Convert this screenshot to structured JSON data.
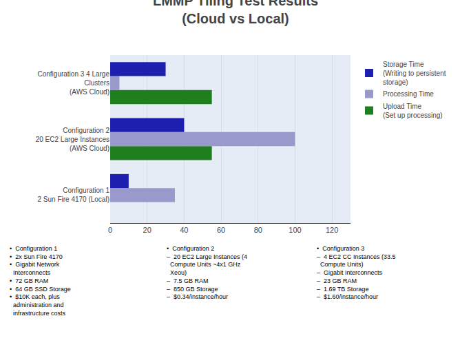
{
  "chart_data": {
    "type": "bar",
    "orientation": "horizontal",
    "title": "LMMP Tiling Test Results",
    "subtitle": "(Cloud vs Local)",
    "categories": [
      "Configuration 1\n2 Sun Fire 4170 (Local)",
      "Configuration 2\n20 EC2 Large Instances\n(AWS Cloud)",
      "Configuration 3 4 Large\nClusters\n(AWS Cloud)"
    ],
    "series": [
      {
        "name": "Storage Time\n(Writing to persistent\nstorage)",
        "color": "#1F1FAF",
        "values": [
          10,
          40,
          30
        ]
      },
      {
        "name": "Processing Time",
        "color": "#9999CC",
        "values": [
          35,
          100,
          5
        ]
      },
      {
        "name": "Upload Time\n(Set up processing)",
        "color": "#1F7F1F",
        "values": [
          0,
          55,
          55
        ]
      }
    ],
    "xlim": [
      0,
      130
    ],
    "xticks": [
      0,
      20,
      40,
      60,
      80,
      100,
      120
    ],
    "grid": true,
    "annotations": [
      [
        "•  Configuration 1",
        "•  2x Sun Fire 4170",
        "•  Gigabit Network\n  Interconnects",
        "•  72 GB RAM",
        "•  64 GB SSD Storage",
        "•  $10K each, plus\n  administration and\n  infrastructure costs"
      ],
      [
        "•  Configuration 2",
        "–  20 EC2 Large Instances (4\n  Compute Units ~4x1 GHz\n  Xeou)",
        "–  7.5 GB RAM",
        "–  850 GB Storage",
        "–  $0.34/instance/hour"
      ],
      [
        "•  Configuration 3",
        "–  4 EC2 CC Instances (33.5\n  Compute Units)",
        "–  Gigabit Interconnects",
        "–  23 GB RAM",
        "–  1.69 TB Storage",
        "–  $1.60/instance/hour"
      ]
    ]
  }
}
